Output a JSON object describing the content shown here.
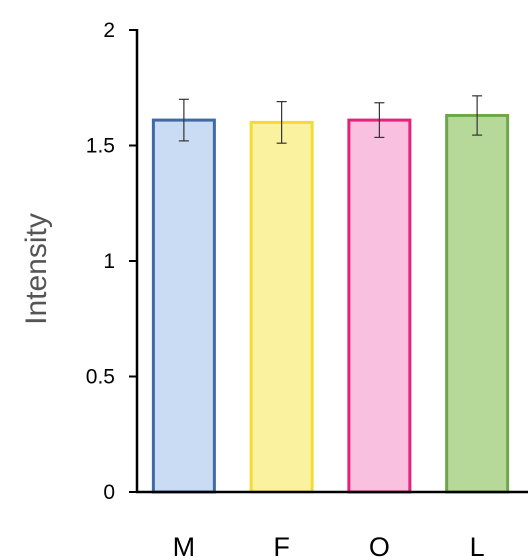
{
  "chart_data": {
    "type": "bar",
    "categories": [
      "M",
      "F",
      "O",
      "L"
    ],
    "values": [
      1.61,
      1.6,
      1.61,
      1.63
    ],
    "errors": [
      0.09,
      0.09,
      0.075,
      0.085
    ],
    "ylabel": "Intensity",
    "xlabel": "",
    "ylim": [
      0,
      2
    ],
    "yticks": [
      "0",
      "0.5",
      "1",
      "1.5",
      "2"
    ],
    "grid": false,
    "colors": {
      "fill": [
        "#c9dcf3",
        "#fbf29f",
        "#fac0df",
        "#b6d99a"
      ],
      "stroke": [
        "#3f6aa6",
        "#f2db33",
        "#e4217b",
        "#6ea74a"
      ]
    }
  }
}
